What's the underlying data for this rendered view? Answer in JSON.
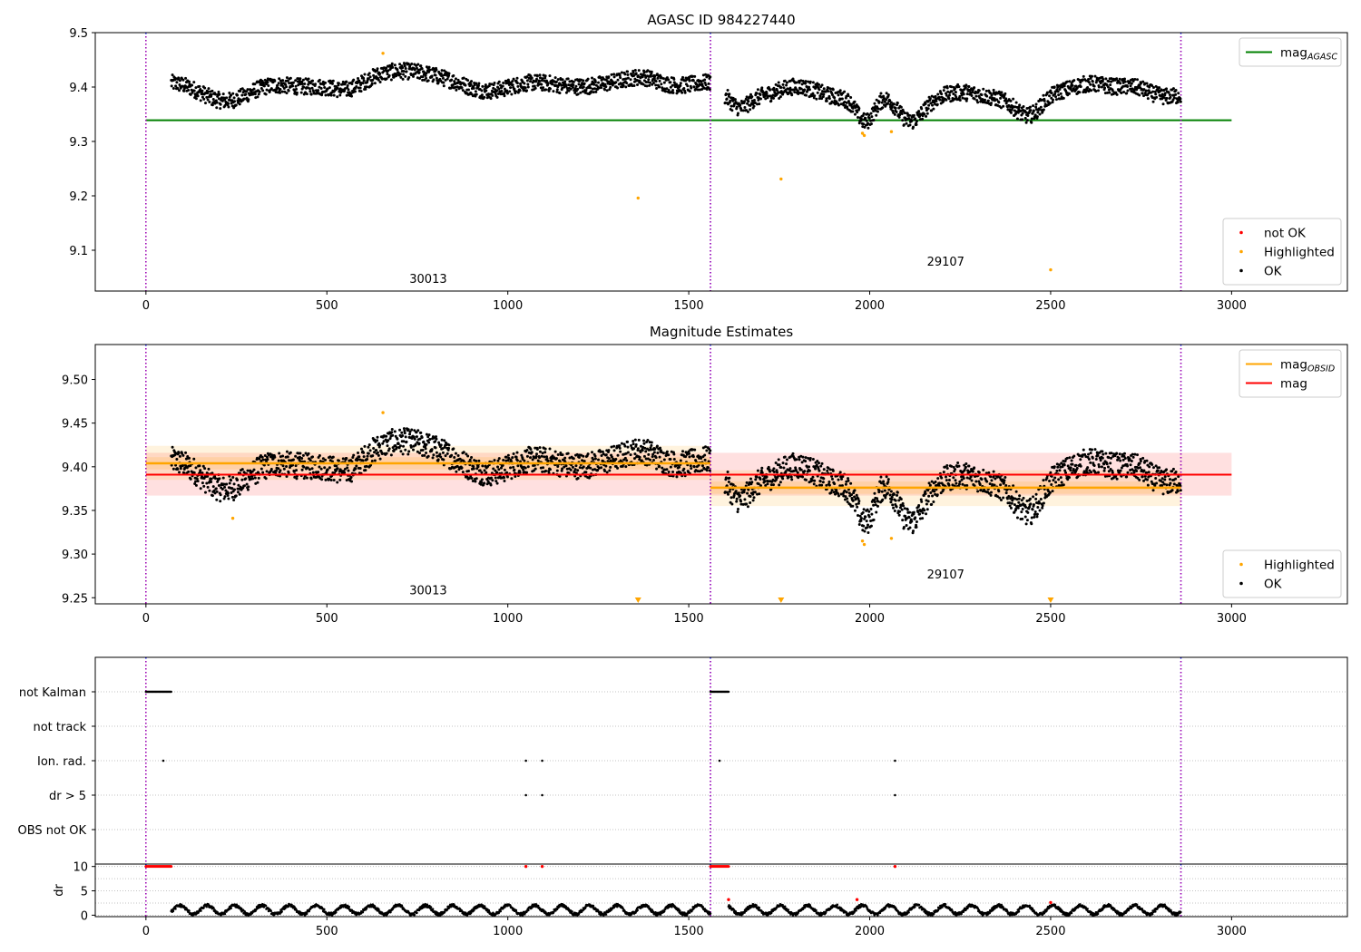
{
  "chart_data": [
    {
      "type": "scatter",
      "title": "AGASC ID 984227440",
      "xlim": [
        -140,
        3320
      ],
      "ylim": [
        9.025,
        9.5
      ],
      "x_ticks": [
        0,
        500,
        1000,
        1500,
        2000,
        2500,
        3000
      ],
      "y_ticks": [
        9.1,
        9.2,
        9.3,
        9.4,
        9.5
      ],
      "y_tick_labels": [
        "9.1",
        "9.2",
        "9.3",
        "9.4",
        "9.5"
      ],
      "obsid_boundaries": [
        0,
        1560,
        2860
      ],
      "obsid_labels": [
        {
          "text": "30013",
          "x": 780,
          "y": 9.04
        },
        {
          "text": "29107",
          "x": 2210,
          "y": 9.072
        }
      ],
      "hlines": [
        {
          "name": "mag_AGASC",
          "y": 9.339,
          "x": [
            0,
            3000
          ],
          "color": "#008000"
        }
      ],
      "ok_segments": [
        {
          "x": [
            70,
            1560
          ],
          "base": 9.405
        },
        {
          "x": [
            1600,
            2860
          ],
          "base": 9.38
        }
      ],
      "highlighted_points": [
        {
          "x": 655,
          "y": 9.462
        },
        {
          "x": 1360,
          "y": 9.196
        },
        {
          "x": 1755,
          "y": 9.231
        },
        {
          "x": 1980,
          "y": 9.315
        },
        {
          "x": 1985,
          "y": 9.311
        },
        {
          "x": 2060,
          "y": 9.318
        },
        {
          "x": 2500,
          "y": 9.064
        }
      ],
      "legends": [
        {
          "position": "top-right",
          "entries": [
            {
              "label": "mag",
              "sub": "AGASC",
              "kind": "line",
              "color": "#008000"
            }
          ]
        },
        {
          "position": "bottom-right",
          "entries": [
            {
              "label": "not OK",
              "kind": "dot",
              "color": "#ff0000"
            },
            {
              "label": "Highlighted",
              "kind": "dot",
              "color": "#ffa500"
            },
            {
              "label": "OK",
              "kind": "dot",
              "color": "#000000"
            }
          ]
        }
      ]
    },
    {
      "type": "scatter",
      "title": "Magnitude Estimates",
      "xlim": [
        -140,
        3320
      ],
      "ylim": [
        9.243,
        9.54
      ],
      "x_ticks": [
        0,
        500,
        1000,
        1500,
        2000,
        2500,
        3000
      ],
      "y_ticks": [
        9.25,
        9.3,
        9.35,
        9.4,
        9.45,
        9.5
      ],
      "y_tick_labels": [
        "9.25",
        "9.30",
        "9.35",
        "9.40",
        "9.45",
        "9.50"
      ],
      "obsid_boundaries": [
        0,
        1560,
        2860
      ],
      "obsid_labels": [
        {
          "text": "30013",
          "x": 780,
          "y": 9.254
        },
        {
          "text": "29107",
          "x": 2210,
          "y": 9.272
        }
      ],
      "mag": {
        "value": 9.391,
        "band": [
          9.367,
          9.416
        ],
        "x": [
          0,
          3000
        ],
        "color": "#ff0000"
      },
      "mag_obsid": [
        {
          "x": [
            0,
            1560
          ],
          "value": 9.404,
          "band": [
            9.385,
            9.424
          ],
          "inner_band": [
            9.397,
            9.411
          ]
        },
        {
          "x": [
            1560,
            2860
          ],
          "value": 9.376,
          "band": [
            9.355,
            9.396
          ],
          "inner_band": [
            9.369,
            9.383
          ]
        }
      ],
      "ok_segments": [
        {
          "x": [
            70,
            1560
          ],
          "base": 9.405
        },
        {
          "x": [
            1600,
            2860
          ],
          "base": 9.38
        }
      ],
      "highlighted_points": [
        {
          "x": 240,
          "y": 9.341
        },
        {
          "x": 655,
          "y": 9.462
        },
        {
          "x": 1980,
          "y": 9.315
        },
        {
          "x": 1985,
          "y": 9.311
        },
        {
          "x": 2060,
          "y": 9.318
        }
      ],
      "offscale_markers": [
        {
          "x": 1360
        },
        {
          "x": 1755
        },
        {
          "x": 2500
        }
      ],
      "legends": [
        {
          "position": "top-right",
          "entries": [
            {
              "label": "mag",
              "sub": "OBSID",
              "kind": "line",
              "color": "#ffa500"
            },
            {
              "label": "mag",
              "kind": "line",
              "color": "#ff0000"
            }
          ]
        },
        {
          "position": "bottom-right",
          "entries": [
            {
              "label": "Highlighted",
              "kind": "dot",
              "color": "#ffa500"
            },
            {
              "label": "OK",
              "kind": "dot",
              "color": "#000000"
            }
          ]
        }
      ]
    },
    {
      "type": "scatter",
      "title": "",
      "categories": [
        "not Kalman",
        "not track",
        "Ion. rad.",
        "dr > 5",
        "OBS not OK"
      ],
      "xlim": [
        -140,
        3320
      ],
      "obsid_boundaries": [
        0,
        1560,
        2860
      ],
      "flags": [
        {
          "category": "not Kalman",
          "ranges": [
            [
              0,
              70
            ],
            [
              1560,
              1610
            ]
          ],
          "points": []
        },
        {
          "category": "not track",
          "ranges": [],
          "points": []
        },
        {
          "category": "Ion. rad.",
          "ranges": [],
          "points": [
            48,
            1050,
            1095,
            1585,
            2070
          ]
        },
        {
          "category": "dr > 5",
          "ranges": [],
          "points": [
            1050,
            1095,
            2070
          ]
        },
        {
          "category": "OBS not OK",
          "ranges": [],
          "points": []
        }
      ]
    },
    {
      "type": "scatter",
      "title": "",
      "ylabel": "dr",
      "xlim": [
        -140,
        3320
      ],
      "ylim": [
        -0.3,
        10.5
      ],
      "x_ticks": [
        0,
        500,
        1000,
        1500,
        2000,
        2500,
        3000
      ],
      "y_ticks": [
        0,
        5,
        10
      ],
      "y_tick_labels": [
        "0",
        "5",
        "10"
      ],
      "obsid_boundaries": [
        0,
        1560,
        2860
      ],
      "red_points": [
        {
          "x": 1050,
          "y": 10
        },
        {
          "x": 1095,
          "y": 10
        },
        {
          "x": 2070,
          "y": 10
        },
        {
          "x": 1610,
          "y": 3.2
        },
        {
          "x": 1965,
          "y": 3.2
        },
        {
          "x": 2500,
          "y": 2.6
        }
      ],
      "red_ranges": [
        {
          "x": [
            0,
            70
          ],
          "y": 10
        },
        {
          "x": [
            1560,
            1610
          ],
          "y": 10
        }
      ],
      "ok_segments": [
        {
          "x": [
            70,
            1560
          ]
        },
        {
          "x": [
            1610,
            2860
          ]
        }
      ]
    }
  ]
}
